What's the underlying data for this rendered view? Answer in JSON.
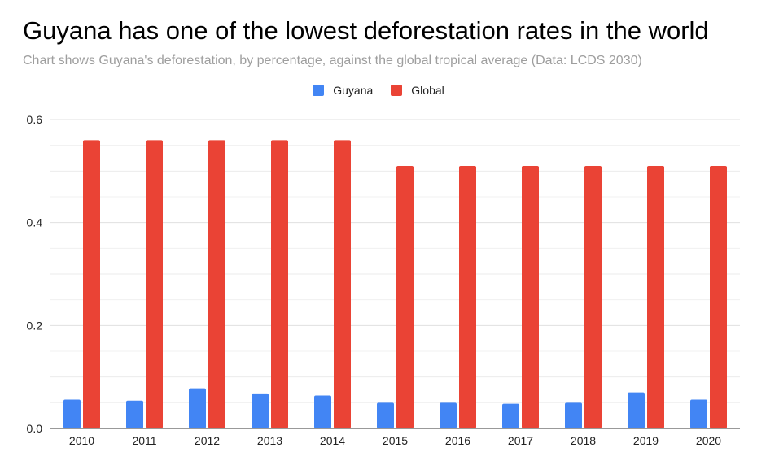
{
  "title": "Guyana has one of the lowest deforestation rates in the world",
  "subtitle": "Chart shows Guyana's deforestation, by percentage, against the global tropical average (Data: LCDS 2030)",
  "colors": {
    "guyana": "#4285f4",
    "global": "#ea4335",
    "grid": "#e0e0e0",
    "axis": "#333333"
  },
  "chart_data": {
    "type": "bar",
    "title": "Guyana has one of the lowest deforestation rates in the world",
    "subtitle": "Chart shows Guyana's deforestation, by percentage, against the global tropical average (Data: LCDS 2030)",
    "categories": [
      "2010",
      "2011",
      "2012",
      "2013",
      "2014",
      "2015",
      "2016",
      "2017",
      "2018",
      "2019",
      "2020"
    ],
    "series": [
      {
        "name": "Guyana",
        "values": [
          0.056,
          0.054,
          0.078,
          0.068,
          0.064,
          0.05,
          0.05,
          0.048,
          0.05,
          0.07,
          0.056
        ]
      },
      {
        "name": "Global",
        "values": [
          0.56,
          0.56,
          0.56,
          0.56,
          0.56,
          0.51,
          0.51,
          0.51,
          0.51,
          0.51,
          0.51
        ]
      }
    ],
    "ylim": [
      0,
      0.6
    ],
    "yticks": [
      "0.0",
      "0.2",
      "0.4",
      "0.6"
    ],
    "xlabel": "",
    "ylabel": "",
    "legend": "top-center",
    "grid": true
  }
}
